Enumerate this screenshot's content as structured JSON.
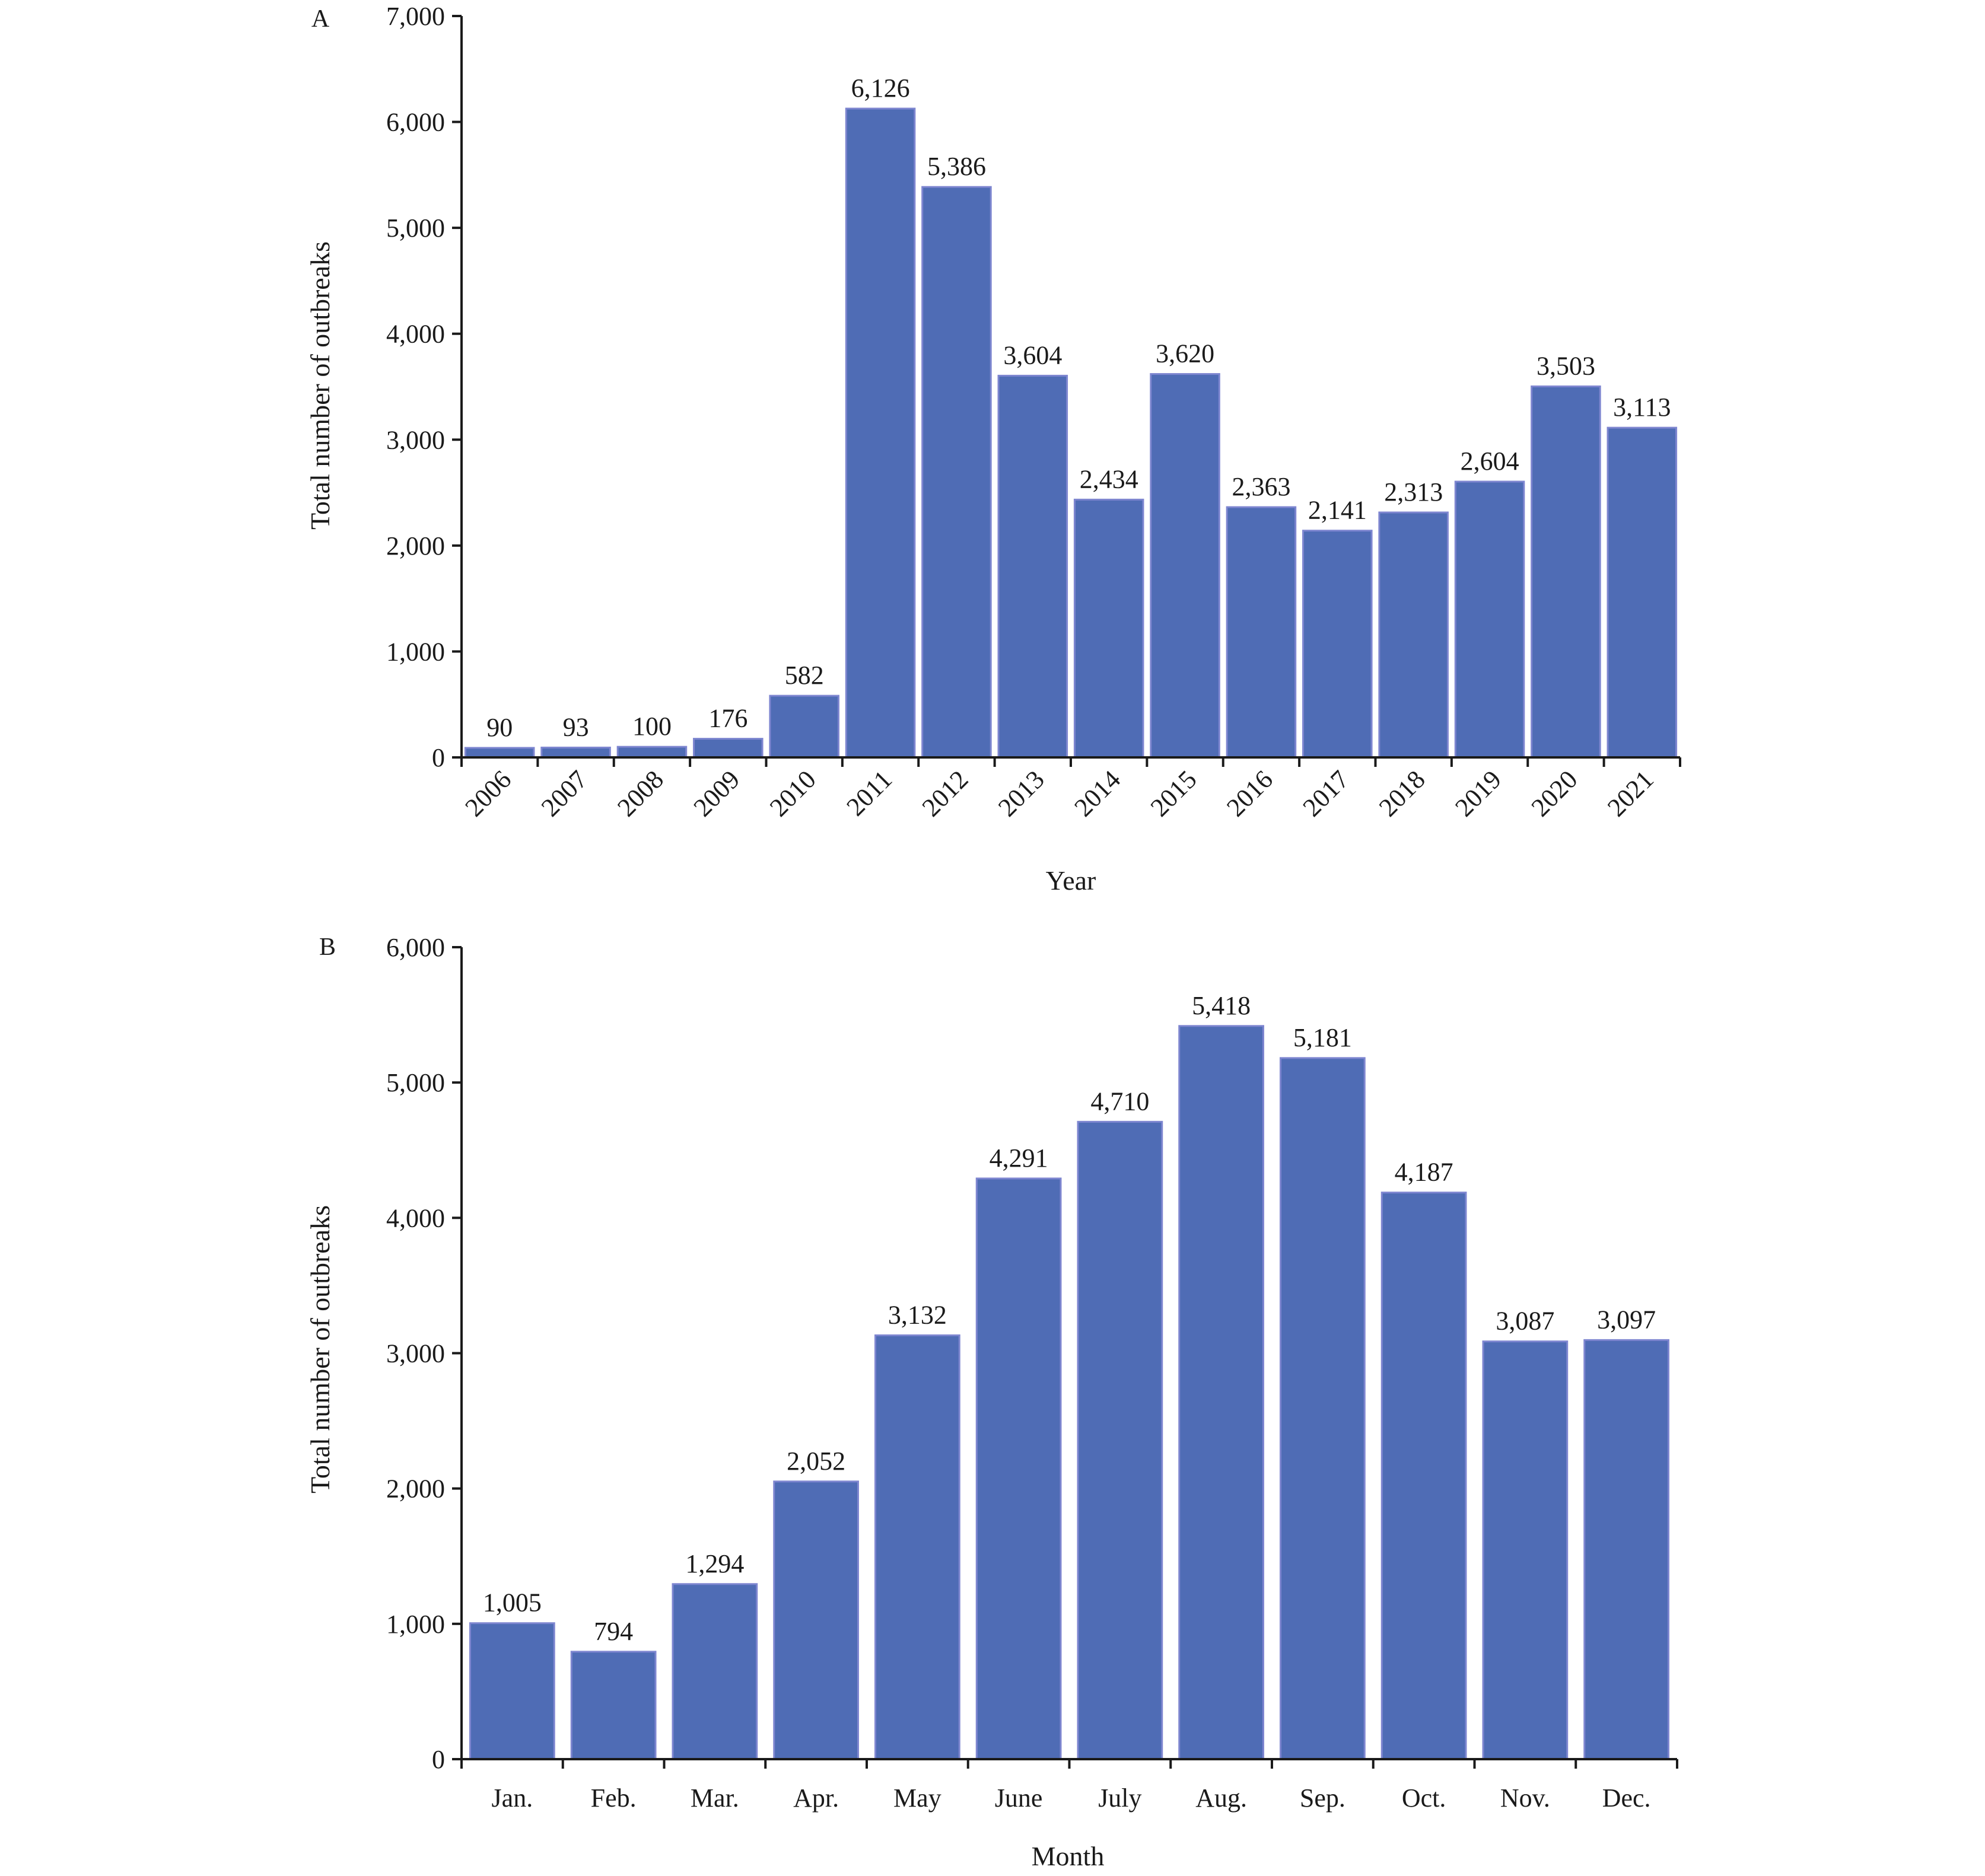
{
  "colors": {
    "bar": "#4f6cb5",
    "bar_edge": "#7e86d0",
    "axis": "#1a1a1a"
  },
  "chart_data": [
    {
      "type": "bar",
      "panel_label": "A",
      "xlabel": "Year",
      "ylabel": "Total number of outbreaks",
      "ylim": [
        0,
        7000
      ],
      "yticks": [
        0,
        1000,
        2000,
        3000,
        4000,
        5000,
        6000,
        7000
      ],
      "ytick_labels": [
        "0",
        "1,000",
        "2,000",
        "3,000",
        "4,000",
        "5,000",
        "6,000",
        "7,000"
      ],
      "x_tick_rotation": "rotated -45°",
      "categories": [
        "2006",
        "2007",
        "2008",
        "2009",
        "2010",
        "2011",
        "2012",
        "2013",
        "2014",
        "2015",
        "2016",
        "2017",
        "2018",
        "2019",
        "2020",
        "2021"
      ],
      "values": [
        90,
        93,
        100,
        176,
        582,
        6126,
        5386,
        3604,
        2434,
        3620,
        2363,
        2141,
        2313,
        2604,
        3503,
        3113
      ],
      "value_labels": [
        "90",
        "93",
        "100",
        "176",
        "582",
        "6,126",
        "5,386",
        "3,604",
        "2,434",
        "3,620",
        "2,363",
        "2,141",
        "2,313",
        "2,604",
        "3,503",
        "3,113"
      ],
      "grid": false,
      "legend": "none"
    },
    {
      "type": "bar",
      "panel_label": "B",
      "xlabel": "Month",
      "ylabel": "Total number of outbreaks",
      "ylim": [
        0,
        6000
      ],
      "yticks": [
        0,
        1000,
        2000,
        3000,
        4000,
        5000,
        6000
      ],
      "ytick_labels": [
        "0",
        "1,000",
        "2,000",
        "3,000",
        "4,000",
        "5,000",
        "6,000"
      ],
      "x_tick_rotation": "horizontal",
      "categories": [
        "Jan.",
        "Feb.",
        "Mar.",
        "Apr.",
        "May",
        "June",
        "July",
        "Aug.",
        "Sep.",
        "Oct.",
        "Nov.",
        "Dec."
      ],
      "values": [
        1005,
        794,
        1294,
        2052,
        3132,
        4291,
        4710,
        5418,
        5181,
        4187,
        3087,
        3097
      ],
      "value_labels": [
        "1,005",
        "794",
        "1,294",
        "2,052",
        "3,132",
        "4,291",
        "4,710",
        "5,418",
        "5,181",
        "4,187",
        "3,087",
        "3,097"
      ],
      "grid": false,
      "legend": "none"
    }
  ]
}
